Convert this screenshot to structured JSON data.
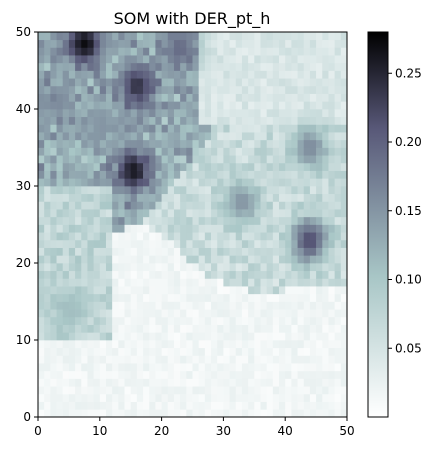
{
  "chart_data": {
    "type": "heatmap",
    "title": "SOM with DER_pt_h",
    "xlabel": "",
    "ylabel": "",
    "grid_size": [
      50,
      50
    ],
    "xlim": [
      0,
      50
    ],
    "ylim": [
      0,
      50
    ],
    "x_ticks": [
      0,
      10,
      20,
      30,
      40,
      50
    ],
    "y_ticks": [
      0,
      10,
      20,
      30,
      40,
      50
    ],
    "colormap": "bone_r",
    "color_range": [
      0.0,
      0.28
    ],
    "colorbar_ticks": [
      0.05,
      0.1,
      0.15,
      0.2,
      0.25
    ],
    "colorbar_tick_labels": [
      "0.05",
      "0.10",
      "0.15",
      "0.20",
      "0.25"
    ],
    "grid": false,
    "regions": [
      {
        "description": "near-white lower region",
        "value_range": [
          0.0,
          0.03
        ]
      },
      {
        "description": "light band right side",
        "value_range": [
          0.03,
          0.1
        ]
      },
      {
        "description": "upper-left cluster",
        "value_range": [
          0.08,
          0.28
        ]
      }
    ],
    "hotspots": [
      {
        "x": 7.5,
        "y": 48.5,
        "value": 0.27
      },
      {
        "x": 16,
        "y": 43,
        "value": 0.24
      },
      {
        "x": 15.5,
        "y": 32,
        "value": 0.26
      },
      {
        "x": 10,
        "y": 38,
        "value": 0.15
      },
      {
        "x": 3,
        "y": 41,
        "value": 0.16
      },
      {
        "x": 23,
        "y": 48,
        "value": 0.19
      },
      {
        "x": 44,
        "y": 23,
        "value": 0.22
      },
      {
        "x": 44,
        "y": 35,
        "value": 0.16
      },
      {
        "x": 33,
        "y": 28,
        "value": 0.15
      },
      {
        "x": 5,
        "y": 14,
        "value": 0.11
      }
    ]
  }
}
